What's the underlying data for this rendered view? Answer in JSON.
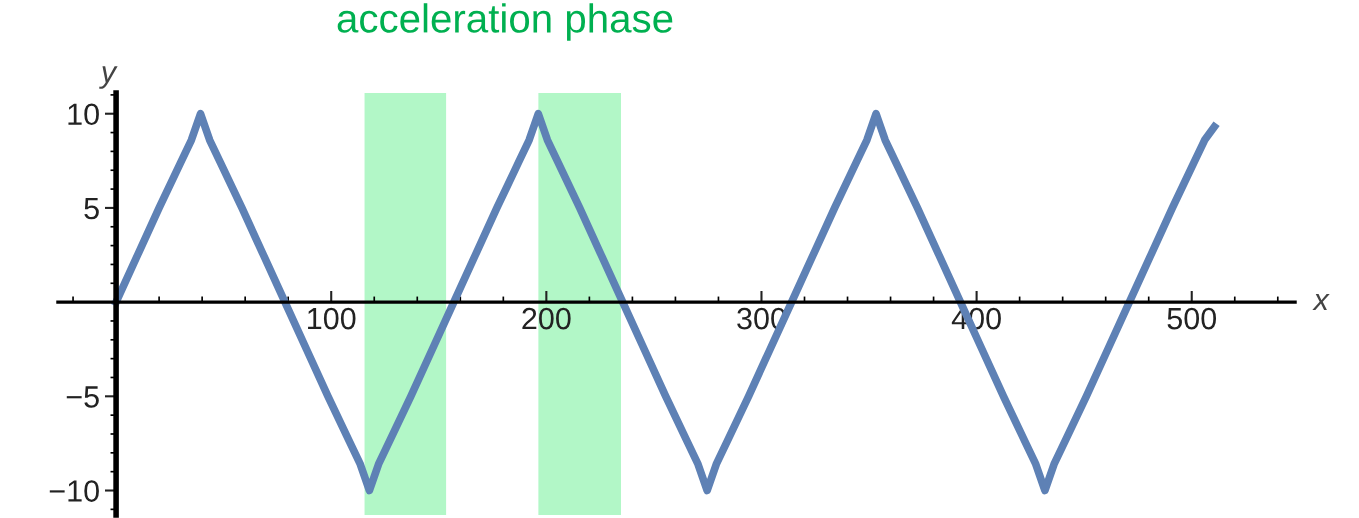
{
  "chart_data": {
    "type": "line",
    "annotations": [
      "acceleration phase"
    ],
    "xlabel": "x",
    "ylabel": "y",
    "xlim": [
      -27,
      548
    ],
    "ylim": [
      -11.3,
      11.1
    ],
    "xticks": [
      100,
      200,
      300,
      400,
      500
    ],
    "yticks": [
      {
        "value": -10,
        "label": "−10"
      },
      {
        "value": -5,
        "label": "−5"
      },
      5,
      10
    ],
    "grid": false,
    "marker": "none",
    "line_style": "solid",
    "bands": [
      {
        "axis": "x",
        "from": 115.5,
        "to": 153.4,
        "label": null,
        "color": "#66f08f"
      },
      {
        "axis": "x",
        "from": 196.3,
        "to": 234.7,
        "label": null,
        "color": "#66f08f"
      }
    ],
    "series": [
      {
        "color": "#5e81b5",
        "x": [
          0,
          10,
          20,
          30,
          35,
          39.25,
          43.5,
          48.5,
          58.5,
          68.5,
          78.5,
          88.5,
          98.5,
          108.5,
          113.5,
          117.75,
          122,
          127,
          137,
          147,
          157,
          167,
          177,
          187,
          192,
          196.25,
          200.5,
          205.5,
          215.5,
          225.5,
          235.5,
          245.5,
          255.5,
          265.5,
          270.5,
          274.75,
          279,
          284,
          294,
          304,
          314,
          324,
          334,
          344,
          349,
          353.25,
          357.5,
          362.5,
          372.5,
          382.5,
          392.5,
          402.5,
          412.5,
          422.5,
          427.5,
          431.75,
          436,
          441,
          451,
          461,
          471,
          481,
          491,
          501,
          506,
          510.5
        ],
        "values": [
          0,
          2.5,
          5,
          7.4,
          8.6,
          10,
          8.6,
          7.4,
          5,
          2.5,
          0,
          -2.5,
          -5,
          -7.4,
          -8.6,
          -10,
          -8.6,
          -7.4,
          -5,
          -2.5,
          0,
          2.5,
          5,
          7.4,
          8.6,
          10,
          8.6,
          7.4,
          5,
          2.5,
          0,
          -2.5,
          -5,
          -7.4,
          -8.6,
          -10,
          -8.6,
          -7.4,
          -5,
          -2.5,
          0,
          2.5,
          5,
          7.4,
          8.6,
          10,
          8.6,
          7.4,
          5,
          2.5,
          0,
          -2.5,
          -5,
          -7.4,
          -8.6,
          -10,
          -8.6,
          -7.4,
          -5,
          -2.5,
          0,
          2.5,
          5,
          7.4,
          8.6,
          9.3
        ]
      }
    ]
  }
}
